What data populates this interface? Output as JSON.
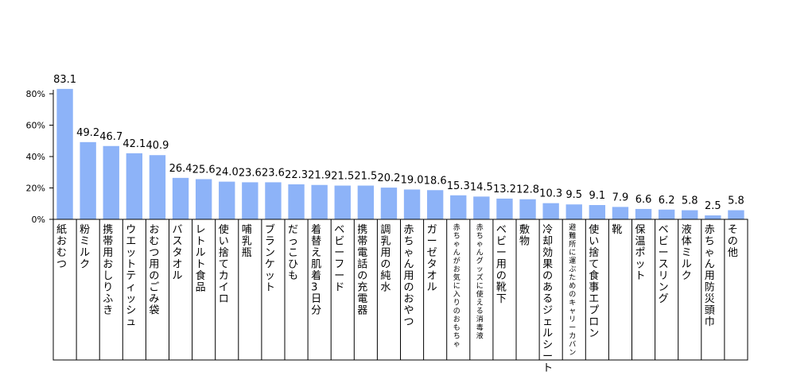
{
  "chart_data": {
    "type": "bar",
    "title": "",
    "xlabel": "",
    "ylabel": "",
    "ylim": [
      0,
      80
    ],
    "y_ticks": [
      "0%",
      "20%",
      "40%",
      "60%",
      "80%"
    ],
    "y_tick_values": [
      0,
      20,
      40,
      60,
      80
    ],
    "grid": false,
    "bar_color": "#8db3f8",
    "categories": [
      "紙おむつ",
      "粉ミルク",
      "携帯用おしりふき",
      "ウエットティッシュ",
      "おむつ用のごみ袋",
      "バスタオル",
      "レトルト食品",
      "使い捨てカイロ",
      "哺乳瓶",
      "ブランケット",
      "だっこひも",
      "着替え肌着3日分",
      "ベビーフード",
      "携帯電話の充電器",
      "調乳用の純水",
      "赤ちゃん用のおやつ",
      "ガーゼタオル",
      "赤ちゃんがお気に入りのおもちゃ",
      "赤ちゃんグッズに使える消毒液",
      "ベビー用の靴下",
      "敷物",
      "冷却効果のあるジェルシート",
      "避難所に運ぶためのキャリーカバン",
      "使い捨て食事エプロン",
      "靴",
      "保温ポット",
      "ベビースリング",
      "液体ミルク",
      "赤ちゃん用防災頭巾",
      "その他"
    ],
    "values": [
      83.1,
      49.2,
      46.7,
      42.1,
      40.9,
      26.4,
      25.6,
      24.0,
      23.6,
      23.6,
      22.3,
      21.9,
      21.5,
      21.5,
      20.2,
      19.0,
      18.6,
      15.3,
      14.5,
      13.2,
      12.8,
      10.3,
      9.5,
      9.1,
      7.9,
      6.6,
      6.2,
      5.8,
      2.5,
      5.8
    ],
    "value_labels": [
      "83.1",
      "49.2",
      "46.7",
      "42.1",
      "40.9",
      "26.4",
      "25.6",
      "24.0",
      "23.6",
      "23.6",
      "22.3",
      "21.9",
      "21.5",
      "21.5",
      "20.2",
      "19.0",
      "18.6",
      "15.3",
      "14.5",
      "13.2",
      "12.8",
      "10.3",
      "9.5",
      "9.1",
      "7.9",
      "6.6",
      "6.2",
      "5.8",
      "2.5",
      "5.8"
    ],
    "small_label_indices": [
      17,
      18,
      22
    ]
  }
}
